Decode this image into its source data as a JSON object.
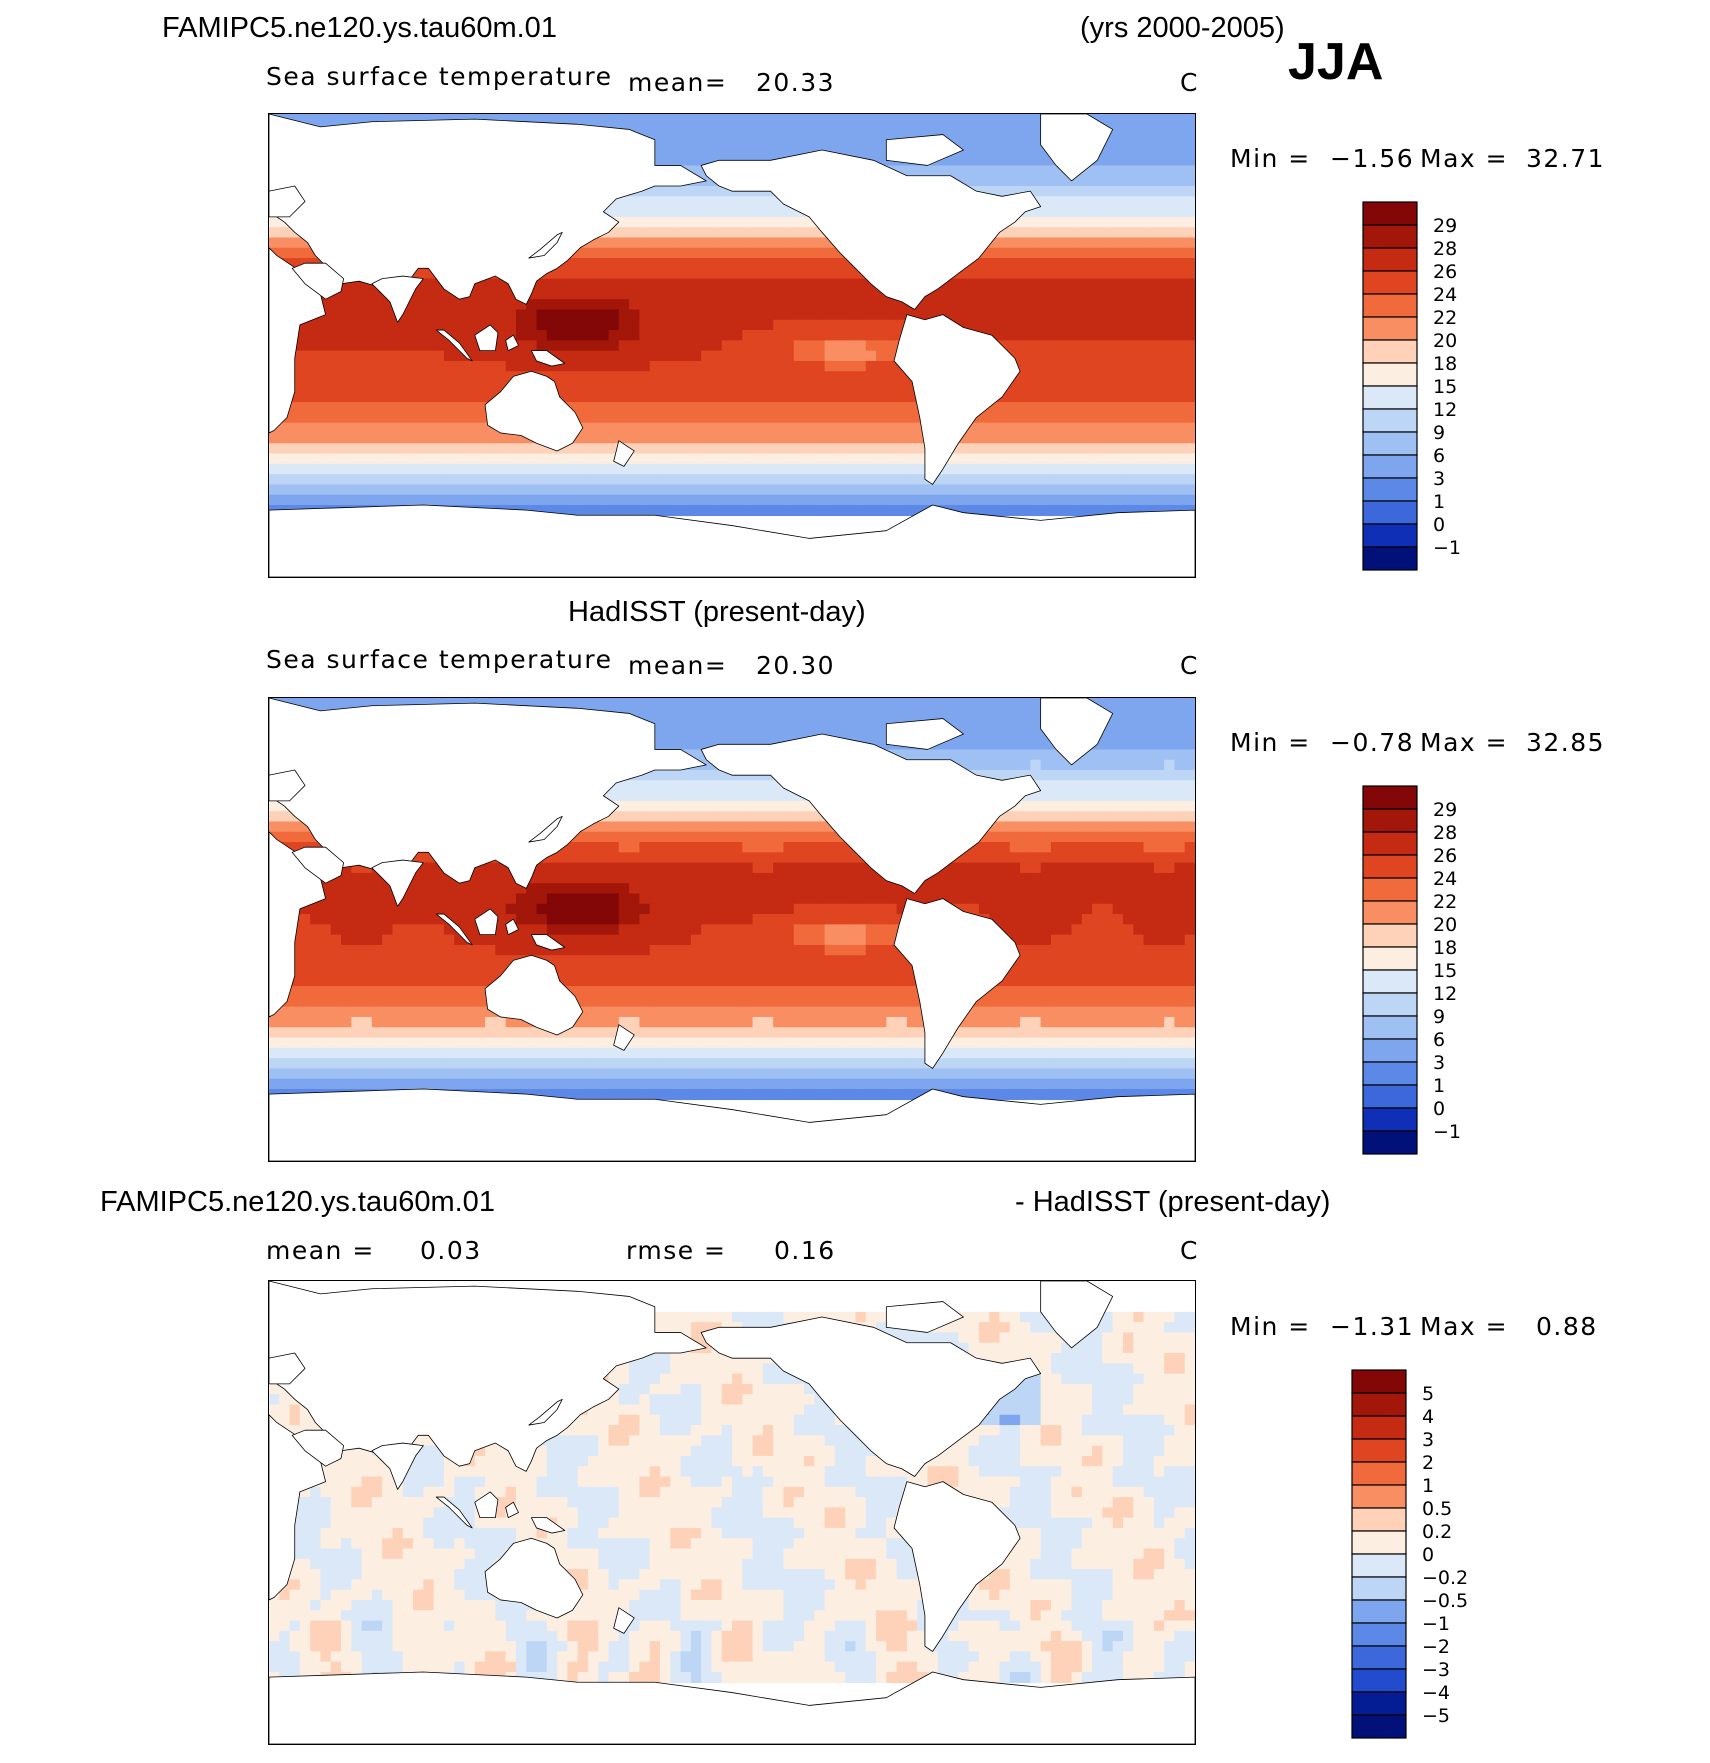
{
  "colors": {
    "warm": [
      "#fdeee2",
      "#fdd2b9",
      "#fcb08e",
      "#f98e62",
      "#f06a3c",
      "#df4521",
      "#c42b12",
      "#a3170a",
      "#820706"
    ],
    "cool": [
      "#dbe8f8",
      "#bed6f6",
      "#9fc0f3",
      "#7ea6ee",
      "#5c88e7",
      "#3c68dc",
      "#234bcd",
      "#0f2fb6",
      "#041c94",
      "#021079"
    ],
    "land": "#ffffff",
    "coast": "#000000"
  },
  "header": {
    "title_left": "FAMIPC5.ne120.ys.tau60m.01",
    "title_right": "(yrs 2000-2005)",
    "season": "JJA"
  },
  "panels": [
    {
      "variable": "Sea surface temperature",
      "mean_label": "mean=",
      "mean_value": "20.33",
      "units": "C",
      "min_label": "Min =",
      "min_value": "−1.56",
      "max_label": "Max =",
      "max_value": "32.71",
      "colorbar_labels": [
        "29",
        "28",
        "26",
        "24",
        "22",
        "20",
        "18",
        "15",
        "12",
        "9",
        "6",
        "3",
        "1",
        "0",
        "−1"
      ]
    },
    {
      "title": "HadISST (present-day)",
      "variable": "Sea surface temperature",
      "mean_label": "mean=",
      "mean_value": "20.30",
      "units": "C",
      "min_label": "Min =",
      "min_value": "−0.78",
      "max_label": "Max =",
      "max_value": "32.85",
      "colorbar_labels": [
        "29",
        "28",
        "26",
        "24",
        "22",
        "20",
        "18",
        "15",
        "12",
        "9",
        "6",
        "3",
        "1",
        "0",
        "−1"
      ]
    },
    {
      "title_left": "FAMIPC5.ne120.ys.tau60m.01",
      "title_right": "- HadISST (present-day)",
      "mean_label": "mean =",
      "mean_value": "0.03",
      "rmse_label": "rmse =",
      "rmse_value": "0.16",
      "units": "C",
      "min_label": "Min =",
      "min_value": "−1.31",
      "max_label": "Max =",
      "max_value": "0.88",
      "colorbar_labels": [
        "5",
        "4",
        "3",
        "2",
        "1",
        "0.5",
        "0.2",
        "0",
        "−0.2",
        "−0.5",
        "−1",
        "−2",
        "−3",
        "−4",
        "−5"
      ]
    }
  ]
}
